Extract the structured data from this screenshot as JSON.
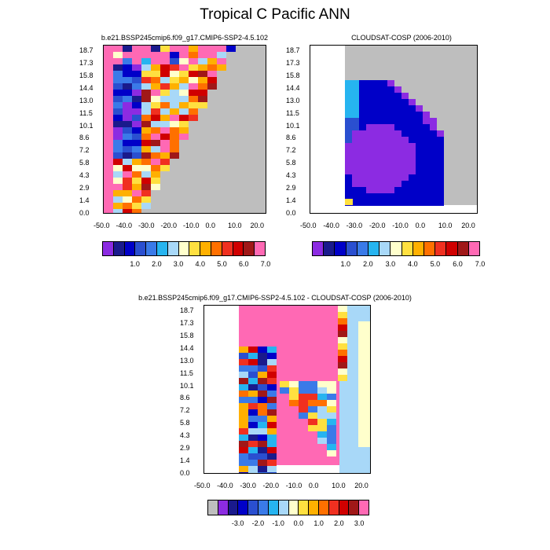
{
  "page_title": "Tropical C Pacific ANN",
  "palette": {
    "missing": "#bebebe",
    "levels": [
      "#8c2be2",
      "#1a1a8c",
      "#0000c8",
      "#2a4fd0",
      "#3a7ae8",
      "#26b4f0",
      "#a8d8f8",
      "#ffffcc",
      "#ffe040",
      "#ffb000",
      "#ff7000",
      "#f03020",
      "#d00000",
      "#a01818",
      "#ff69b4"
    ],
    "diff_levels": [
      "#bebebe",
      "#8c2be2",
      "#1a1a8c",
      "#0000c8",
      "#2a4fd0",
      "#3a7ae8",
      "#26b4f0",
      "#a8d8f8",
      "#ffffcc",
      "#ffe040",
      "#ffb000",
      "#ff7000",
      "#f03020",
      "#d00000",
      "#a01818",
      "#ff69b4"
    ]
  },
  "chart_data": [
    {
      "type": "heatmap",
      "title": "b.e21.BSSP245cmip6.f09_g17.CMIP6-SSP2-4.5.102",
      "x_ticks": [
        "-50.0",
        "-40.0",
        "-30.0",
        "-20.0",
        "-10.0",
        "0.0",
        "10.0",
        "20.0"
      ],
      "y_ticks": [
        "18.7",
        "17.3",
        "15.8",
        "14.4",
        "13.0",
        "11.5",
        "10.1",
        "8.6",
        "7.2",
        "5.8",
        "4.3",
        "2.9",
        "1.4",
        "0.0"
      ],
      "colorbar_labels": [
        "1.0",
        "2.0",
        "3.0",
        "4.0",
        "5.0",
        "6.0",
        "7.0"
      ]
    },
    {
      "type": "heatmap",
      "title": "CLOUDSAT-COSP (2006-2010)",
      "x_ticks": [
        "-50.0",
        "-40.0",
        "-30.0",
        "-20.0",
        "-10.0",
        "0.0",
        "10.0",
        "20.0"
      ],
      "y_ticks": [
        "18.7",
        "17.3",
        "15.8",
        "14.4",
        "13.0",
        "11.5",
        "10.1",
        "8.6",
        "7.2",
        "5.8",
        "4.3",
        "2.9",
        "1.4",
        "0.0"
      ],
      "colorbar_labels": [
        "1.0",
        "2.0",
        "3.0",
        "4.0",
        "5.0",
        "6.0",
        "7.0"
      ]
    },
    {
      "type": "heatmap",
      "title": "b.e21.BSSP245cmip6.f09_g17.CMIP6-SSP2-4.5.102 - CLOUDSAT-COSP (2006-2010)",
      "x_ticks": [
        "-50.0",
        "-40.0",
        "-30.0",
        "-20.0",
        "-10.0",
        "0.0",
        "10.0",
        "20.0"
      ],
      "y_ticks": [
        "18.7",
        "17.3",
        "15.8",
        "14.4",
        "13.0",
        "11.5",
        "10.1",
        "8.6",
        "7.2",
        "5.8",
        "4.3",
        "2.9",
        "1.4",
        "0.0"
      ],
      "colorbar_labels": [
        "-3.0",
        "-2.0",
        "-1.0",
        "0.0",
        "1.0",
        "2.0",
        "3.0"
      ]
    }
  ]
}
